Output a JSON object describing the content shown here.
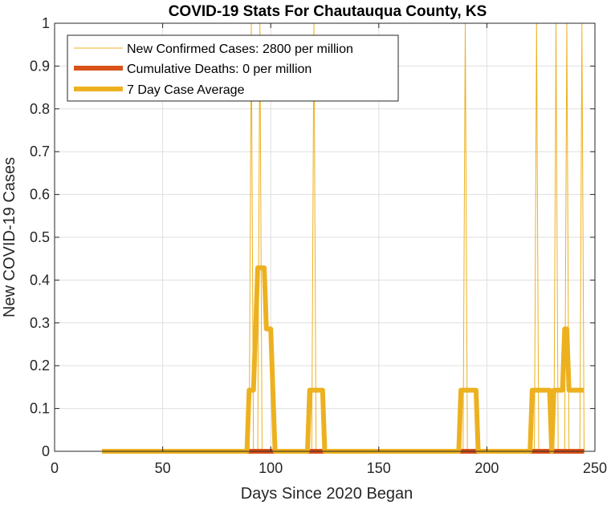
{
  "chart_data": {
    "type": "line",
    "title": "COVID-19 Stats For Chautauqua County, KS",
    "xlabel": "Days Since 2020 Began",
    "ylabel": "New COVID-19 Cases",
    "xlim": [
      0,
      250
    ],
    "ylim": [
      0,
      1
    ],
    "xticks": [
      0,
      50,
      100,
      150,
      200,
      250
    ],
    "yticks": [
      0,
      0.1,
      0.2,
      0.3,
      0.4,
      0.5,
      0.6,
      0.7,
      0.8,
      0.9,
      1
    ],
    "xtick_labels": [
      "0",
      "50",
      "100",
      "150",
      "200",
      "250"
    ],
    "ytick_labels": [
      "0",
      "0.1",
      "0.2",
      "0.3",
      "0.4",
      "0.5",
      "0.6",
      "0.7",
      "0.8",
      "0.9",
      "1"
    ],
    "grid": true,
    "legend_position": "top-left",
    "series": [
      {
        "name": "New Confirmed Cases: 2800 per million",
        "color": "#EDB120",
        "style": "thin",
        "x": [
          22,
          90,
          91,
          92,
          94,
          95,
          96,
          97,
          119,
          120,
          121,
          189,
          190,
          191,
          222,
          223,
          224,
          231,
          232,
          233,
          236,
          237,
          238,
          243,
          244,
          245
        ],
        "y": [
          0,
          0,
          1,
          0,
          0,
          1,
          0,
          0,
          0,
          1,
          0,
          0,
          1,
          0,
          0,
          1,
          0,
          0,
          1,
          0,
          0,
          1,
          0,
          0,
          1,
          0
        ]
      },
      {
        "name": "Cumulative Deaths: 0 per million",
        "color": "#D95319",
        "style": "thick",
        "x": [
          22,
          245
        ],
        "y": [
          0,
          0
        ]
      },
      {
        "name": "7 Day Case Average",
        "color": "#EDB120",
        "style": "thick",
        "x": [
          22,
          89,
          90,
          92,
          93,
          94,
          95,
          97,
          98,
          100,
          101,
          102,
          117,
          118,
          119,
          123,
          124,
          125,
          187,
          188,
          189,
          194,
          195,
          196,
          220,
          221,
          222,
          227,
          228,
          229,
          230,
          231,
          233,
          234,
          235,
          236,
          237,
          238,
          239,
          240,
          245
        ],
        "y": [
          0,
          0,
          0.1429,
          0.1429,
          0.2857,
          0.4286,
          0.4286,
          0.4286,
          0.2857,
          0.2857,
          0.1429,
          0,
          0,
          0.1429,
          0.1429,
          0.1429,
          0.1429,
          0,
          0,
          0.1429,
          0.1429,
          0.1429,
          0.1429,
          0,
          0,
          0.1429,
          0.1429,
          0.1429,
          0.1429,
          0.1429,
          0,
          0.1429,
          0.1429,
          0.1429,
          0.1429,
          0.2857,
          0.2857,
          0.1429,
          0.1429,
          0.1429,
          0.1429
        ]
      }
    ]
  }
}
